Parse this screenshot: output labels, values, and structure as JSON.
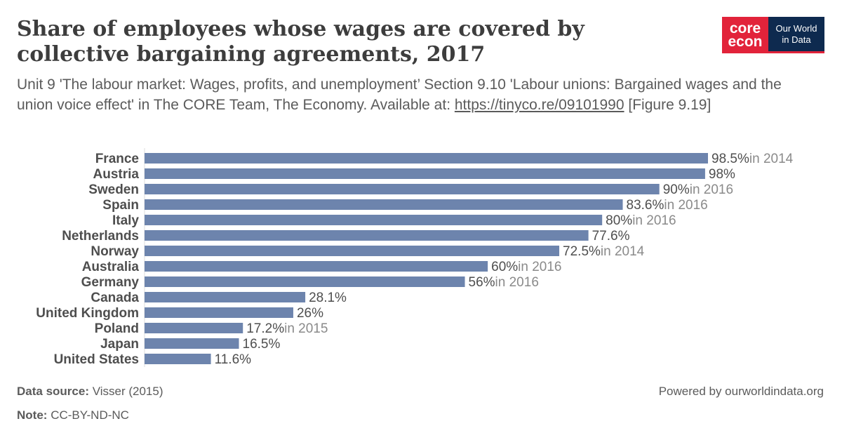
{
  "header": {
    "title": "Share of employees whose wages are covered by collective bargaining agreements, 2017",
    "subtitle_text": "Unit 9 'The labour market: Wages, profits, and unemployment’ Section 9.10 'Labour unions: Bargained wages and the union voice effect' in The CORE Team, The Economy. Available at:",
    "subtitle_link": "https://tinyco.re/09101990",
    "subtitle_ref": "[Figure 9.19]"
  },
  "logos": {
    "core_line1": "core",
    "core_line2": "econ",
    "owid_line1": "Our World",
    "owid_line2": "in Data"
  },
  "chart_data": {
    "type": "bar",
    "orientation": "horizontal",
    "unit": "%",
    "bar_color": "#6d84ad",
    "note_color": "#8a8a8a",
    "grid": false,
    "categories": [
      "France",
      "Austria",
      "Sweden",
      "Spain",
      "Italy",
      "Netherlands",
      "Norway",
      "Australia",
      "Germany",
      "Canada",
      "United Kingdom",
      "Poland",
      "Japan",
      "United States"
    ],
    "values": [
      98.5,
      98,
      90,
      83.6,
      80,
      77.6,
      72.5,
      60,
      56,
      28.1,
      26,
      17.2,
      16.5,
      11.6
    ],
    "value_labels": [
      "98.5%",
      "98%",
      "90%",
      "83.6%",
      "80%",
      "77.6%",
      "72.5%",
      "60%",
      "56%",
      "28.1%",
      "26%",
      "17.2%",
      "16.5%",
      "11.6%"
    ],
    "year_notes": [
      "in 2014",
      "",
      "in 2016",
      "in 2016",
      "in 2016",
      "",
      "in 2014",
      "in 2016",
      "in 2016",
      "",
      "",
      "in 2015",
      "",
      ""
    ]
  },
  "footer": {
    "source_label": "Data source:",
    "source_value": "Visser (2015)",
    "note_label": "Note:",
    "note_value": "CC-BY-ND-NC",
    "powered": "Powered by ourworldindata.org"
  }
}
